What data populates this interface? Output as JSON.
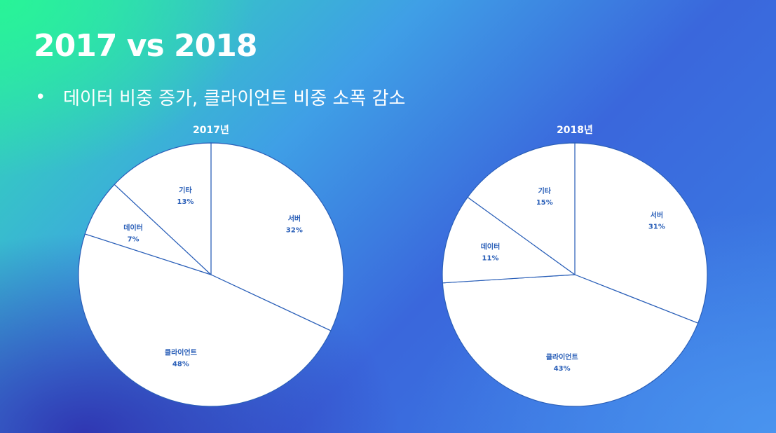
{
  "page": {
    "title": "2017 vs 2018",
    "bullet": "데이터 비중 증가, 클라이언트 비중 소폭 감소"
  },
  "chart_data": [
    {
      "type": "pie",
      "title": "2017년",
      "slices": [
        {
          "label": "서버",
          "value": 32,
          "value_label": "32%"
        },
        {
          "label": "클라이언트",
          "value": 48,
          "value_label": "48%"
        },
        {
          "label": "데이터",
          "value": 7,
          "value_label": "7%"
        },
        {
          "label": "기타",
          "value": 13,
          "value_label": "13%"
        }
      ]
    },
    {
      "type": "pie",
      "title": "2018년",
      "slices": [
        {
          "label": "서버",
          "value": 31,
          "value_label": "31%"
        },
        {
          "label": "클라이언트",
          "value": 43,
          "value_label": "43%"
        },
        {
          "label": "데이터",
          "value": 11,
          "value_label": "11%"
        },
        {
          "label": "기타",
          "value": 15,
          "value_label": "15%"
        }
      ]
    }
  ],
  "colors": {
    "slice_fill": "#ffffff",
    "slice_stroke": "#2a5fb8",
    "label_color": "#2a5fb8",
    "text_color": "#ffffff"
  }
}
